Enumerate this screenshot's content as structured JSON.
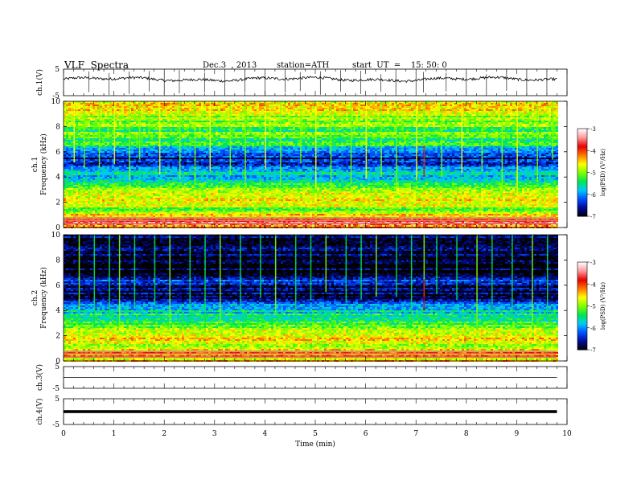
{
  "header": {
    "title": "VLF  Spectra",
    "date": "Dec.3  , 2013",
    "station": "station=ATH",
    "start_ut": "start  UT  =    15: 50: 0"
  },
  "chart_data": [
    {
      "type": "line",
      "name": "ch1-waveform",
      "ylabel": "ch.1(V)",
      "ylim": [
        -5,
        5
      ],
      "yticks": [
        "5",
        "-5"
      ],
      "baseline": 1.2,
      "spikes_t": [
        0.5,
        0.9,
        1.3,
        1.7,
        2.0,
        2.3,
        2.8,
        3.2,
        3.6,
        4.0,
        4.4,
        4.7,
        5.1,
        5.5,
        5.9,
        6.3,
        6.6,
        7.0,
        7.15,
        7.6,
        8.0,
        8.4,
        8.8,
        9.2,
        9.6
      ]
    },
    {
      "type": "heatmap",
      "name": "ch1-spectrogram",
      "ylabel": "ch.1",
      "ylabel2": "Frequency  (kHz)",
      "ylim": [
        0,
        10
      ],
      "yticks": [
        "0",
        "2",
        "4",
        "6",
        "8",
        "10"
      ],
      "xlim": [
        0,
        9.8
      ],
      "profile": [
        {
          "f": 0.1,
          "v": -4.4
        },
        {
          "f": 0.3,
          "v": -3.4
        },
        {
          "f": 0.55,
          "v": -3.9
        },
        {
          "f": 0.8,
          "v": -4.3
        },
        {
          "f": 1.1,
          "v": -4.7
        },
        {
          "f": 1.5,
          "v": -5.0
        },
        {
          "f": 2.0,
          "v": -4.8
        },
        {
          "f": 2.4,
          "v": -4.5
        },
        {
          "f": 3.0,
          "v": -5.0
        },
        {
          "f": 3.8,
          "v": -5.6
        },
        {
          "f": 4.5,
          "v": -5.8
        },
        {
          "f": 5.0,
          "v": -6.4
        },
        {
          "f": 5.5,
          "v": -6.6
        },
        {
          "f": 6.0,
          "v": -6.0
        },
        {
          "f": 6.6,
          "v": -5.4
        },
        {
          "f": 7.5,
          "v": -5.2
        },
        {
          "f": 8.5,
          "v": -5.0
        },
        {
          "f": 9.5,
          "v": -4.6
        },
        {
          "f": 10.0,
          "v": -4.6
        }
      ],
      "vertical_streaks_t": [
        0.2,
        0.4,
        0.7,
        1.0,
        1.3,
        1.5,
        1.9,
        2.3,
        2.6,
        2.9,
        3.3,
        3.6,
        4.0,
        4.3,
        4.7,
        5.0,
        5.3,
        5.7,
        6.0,
        6.3,
        6.6,
        7.0,
        7.15,
        7.5,
        7.9,
        8.3,
        8.7,
        9.0,
        9.4,
        9.7
      ]
    },
    {
      "type": "heatmap",
      "name": "ch2-spectrogram",
      "ylabel": "ch.2",
      "ylabel2": "Frequency  (kHz)",
      "ylim": [
        0,
        10
      ],
      "yticks": [
        "0",
        "2",
        "4",
        "6",
        "8",
        "10"
      ],
      "xlim": [
        0,
        9.8
      ],
      "profile": [
        {
          "f": 0.1,
          "v": -4.6
        },
        {
          "f": 0.4,
          "v": -4.2
        },
        {
          "f": 0.8,
          "v": -4.4
        },
        {
          "f": 1.2,
          "v": -4.8
        },
        {
          "f": 1.7,
          "v": -4.7
        },
        {
          "f": 2.2,
          "v": -4.6
        },
        {
          "f": 2.8,
          "v": -5.0
        },
        {
          "f": 3.5,
          "v": -5.4
        },
        {
          "f": 4.2,
          "v": -5.9
        },
        {
          "f": 5.0,
          "v": -6.7
        },
        {
          "f": 5.6,
          "v": -6.9
        },
        {
          "f": 6.2,
          "v": -6.3
        },
        {
          "f": 7.0,
          "v": -6.9
        },
        {
          "f": 8.0,
          "v": -6.9
        },
        {
          "f": 9.0,
          "v": -6.8
        },
        {
          "f": 10.0,
          "v": -6.8
        }
      ],
      "vertical_streaks_t": [
        0.3,
        0.6,
        0.9,
        1.1,
        1.4,
        1.8,
        2.1,
        2.5,
        2.8,
        3.1,
        3.5,
        3.9,
        4.2,
        4.6,
        4.9,
        5.2,
        5.6,
        5.9,
        6.2,
        6.6,
        6.9,
        7.15,
        7.4,
        7.8,
        8.2,
        8.5,
        8.9,
        9.3,
        9.6
      ]
    },
    {
      "type": "line",
      "name": "ch3-waveform",
      "ylabel": "ch.3(V)",
      "ylim": [
        -5,
        5
      ],
      "yticks": [
        "5",
        "-5"
      ],
      "baseline": 0
    },
    {
      "type": "line",
      "name": "ch4-waveform",
      "ylabel": "ch.4(V)",
      "ylim": [
        -5,
        5
      ],
      "yticks": [
        "5",
        "-5"
      ],
      "baseline": 0
    }
  ],
  "colorbar": {
    "label": "log(PSD) (V²/Hz)",
    "range": [
      -7,
      -3
    ],
    "ticks": [
      "-3",
      "-4",
      "-5",
      "-6",
      "-7"
    ],
    "stops": [
      "#000000",
      "#000a96",
      "#0050ff",
      "#00c8ff",
      "#00e650",
      "#7dff00",
      "#ffff00",
      "#ff7800",
      "#e60000",
      "#ff9696",
      "#ffffff"
    ]
  },
  "time_axis": {
    "xlabel": "Time  (min)",
    "xlim": [
      0,
      10
    ],
    "ticks": [
      "0",
      "1",
      "2",
      "3",
      "4",
      "5",
      "6",
      "7",
      "8",
      "9",
      "10"
    ]
  }
}
